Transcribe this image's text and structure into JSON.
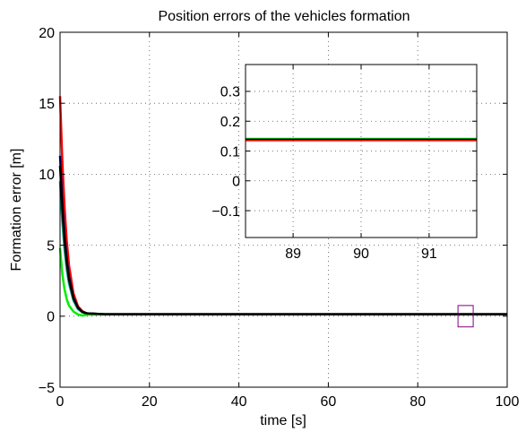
{
  "chart_data": [
    {
      "type": "line",
      "title": "Position errors of the vehicles formation",
      "xlabel": "time [s]",
      "ylabel": "Formation error [m]",
      "xlim": [
        0,
        100
      ],
      "ylim": [
        -5,
        20
      ],
      "xticks": [
        0,
        20,
        40,
        60,
        80,
        100
      ],
      "yticks": [
        -5,
        0,
        5,
        10,
        15,
        20
      ],
      "xtick_labels": [
        "0",
        "20",
        "40",
        "60",
        "80",
        "100"
      ],
      "ytick_labels": [
        "−5",
        "0",
        "5",
        "10",
        "15",
        "20"
      ],
      "grid": true,
      "series": [
        {
          "color": "#ff0000",
          "x": [
            0,
            0.5,
            1,
            1.5,
            2,
            3,
            4,
            5,
            6,
            10,
            100
          ],
          "y": [
            15.5,
            11.0,
            7.7,
            5.3,
            3.6,
            1.6,
            0.7,
            0.35,
            0.2,
            0.14,
            0.14
          ]
        },
        {
          "color": "#000080",
          "x": [
            0,
            0.5,
            1,
            1.5,
            2,
            3,
            4,
            5,
            6,
            10,
            100
          ],
          "y": [
            11.3,
            8.1,
            5.7,
            4.0,
            2.8,
            1.3,
            0.6,
            0.3,
            0.2,
            0.14,
            0.14
          ]
        },
        {
          "color": "#00aa88",
          "x": [
            0,
            0.5,
            1,
            1.5,
            2,
            3,
            4,
            5,
            6,
            10,
            100
          ],
          "y": [
            9.5,
            6.7,
            4.7,
            3.3,
            2.3,
            1.1,
            0.5,
            0.27,
            0.18,
            0.14,
            0.14
          ]
        },
        {
          "color": "#00ee00",
          "x": [
            0,
            0.5,
            1,
            1.5,
            2,
            3,
            4,
            5,
            6,
            10,
            100
          ],
          "y": [
            4.8,
            3.0,
            1.9,
            1.2,
            0.75,
            0.33,
            0.12,
            0.05,
            0.1,
            0.14,
            0.14
          ]
        },
        {
          "color": "#000000",
          "x": [
            0,
            0.5,
            1,
            1.5,
            2,
            3,
            4,
            5,
            6,
            10,
            100
          ],
          "y": [
            10.6,
            7.6,
            5.4,
            3.8,
            2.6,
            1.25,
            0.6,
            0.3,
            0.2,
            0.14,
            0.14
          ]
        }
      ],
      "zoom_box": {
        "x": [
          89,
          91
        ],
        "y": [
          -0.5,
          0.5
        ],
        "color": "#800080"
      }
    },
    {
      "type": "line",
      "title": "",
      "xlim": [
        88.3,
        91.7
      ],
      "ylim": [
        -0.19,
        0.39
      ],
      "xticks": [
        89,
        90,
        91
      ],
      "yticks": [
        -0.1,
        0,
        0.1,
        0.2,
        0.3
      ],
      "xtick_labels": [
        "89",
        "90",
        "91"
      ],
      "ytick_labels": [
        "−0.1",
        "0",
        "0.1",
        "0.2",
        "0.3"
      ],
      "grid": true,
      "series": [
        {
          "color": "#00cc00",
          "x": [
            88.3,
            91.7
          ],
          "y": [
            0.142,
            0.142
          ]
        },
        {
          "color": "#000000",
          "x": [
            88.3,
            91.7
          ],
          "y": [
            0.139,
            0.139
          ]
        },
        {
          "color": "#ff0000",
          "x": [
            88.3,
            91.7
          ],
          "y": [
            0.135,
            0.135
          ]
        }
      ]
    }
  ]
}
